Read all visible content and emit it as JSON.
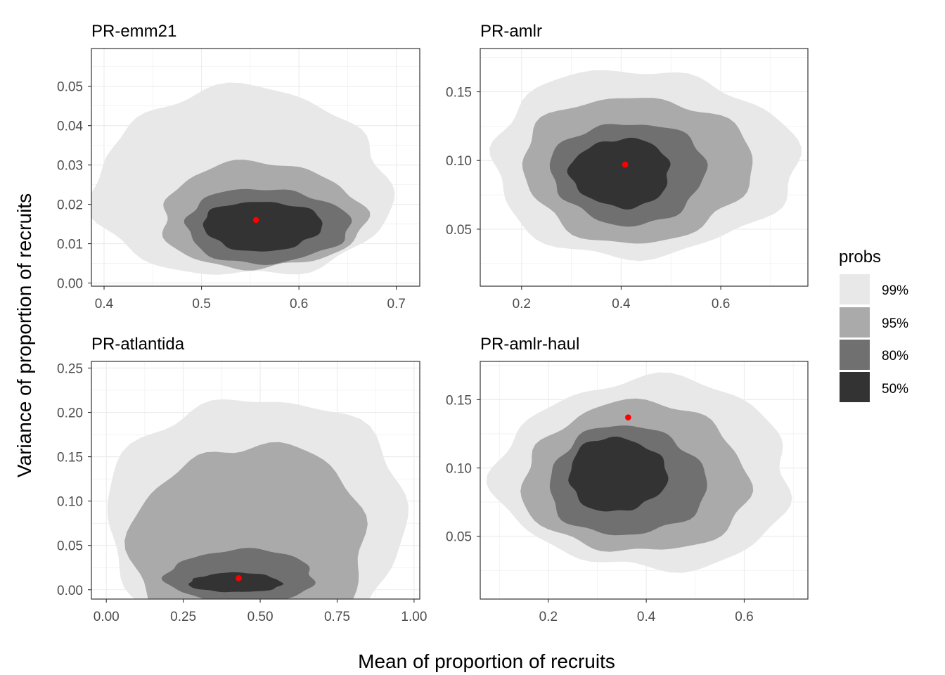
{
  "chart_data": [
    {
      "type": "contour",
      "title": "PR-emm21",
      "xlim": [
        0.387,
        0.724
      ],
      "ylim": [
        -0.0008,
        0.0596
      ],
      "xticks": [
        0.4,
        0.5,
        0.6,
        0.7
      ],
      "xtick_labels": [
        "0.4",
        "0.5",
        "0.6",
        "0.7"
      ],
      "yticks": [
        0.0,
        0.01,
        0.02,
        0.03,
        0.04,
        0.05
      ],
      "ytick_labels": [
        "0.00",
        "0.01",
        "0.02",
        "0.03",
        "0.04",
        "0.05"
      ],
      "center": {
        "x": 0.556,
        "y": 0.016
      },
      "probs_regions": [
        {
          "level": "99%",
          "center_x": 0.541,
          "center_y": 0.025,
          "half_width_x": 0.152,
          "half_height_y": 0.024
        },
        {
          "level": "95%",
          "center_x": 0.561,
          "center_y": 0.017,
          "half_width_x": 0.104,
          "half_height_y": 0.0135
        },
        {
          "level": "80%",
          "center_x": 0.566,
          "center_y": 0.0145,
          "half_width_x": 0.084,
          "half_height_y": 0.0095
        },
        {
          "level": "50%",
          "center_x": 0.562,
          "center_y": 0.0145,
          "half_width_x": 0.061,
          "half_height_y": 0.0063
        }
      ]
    },
    {
      "type": "contour",
      "title": "PR-amlr",
      "xlim": [
        0.117,
        0.775
      ],
      "ylim": [
        0.0085,
        0.1815
      ],
      "xticks": [
        0.2,
        0.4,
        0.6
      ],
      "xtick_labels": [
        "0.2",
        "0.4",
        "0.6"
      ],
      "yticks": [
        0.05,
        0.1,
        0.15
      ],
      "ytick_labels": [
        "0.05",
        "0.10",
        "0.15"
      ],
      "center": {
        "x": 0.408,
        "y": 0.097
      },
      "probs_regions": [
        {
          "level": "99%",
          "center_x": 0.44,
          "center_y": 0.098,
          "half_width_x": 0.305,
          "half_height_y": 0.068
        },
        {
          "level": "95%",
          "center_x": 0.43,
          "center_y": 0.094,
          "half_width_x": 0.23,
          "half_height_y": 0.053
        },
        {
          "level": "80%",
          "center_x": 0.415,
          "center_y": 0.091,
          "half_width_x": 0.155,
          "half_height_y": 0.037
        },
        {
          "level": "50%",
          "center_x": 0.4,
          "center_y": 0.091,
          "half_width_x": 0.1,
          "half_height_y": 0.025
        }
      ]
    },
    {
      "type": "contour",
      "title": "PR-atlantida",
      "xlim": [
        -0.0485,
        1.0185
      ],
      "ylim": [
        -0.0105,
        0.2575
      ],
      "xticks": [
        0.0,
        0.25,
        0.5,
        0.75,
        1.0
      ],
      "xtick_labels": [
        "0.00",
        "0.25",
        "0.50",
        "0.75",
        "1.00"
      ],
      "yticks": [
        0.0,
        0.05,
        0.1,
        0.15,
        0.2,
        0.25
      ],
      "ytick_labels": [
        "0.00",
        "0.05",
        "0.10",
        "0.15",
        "0.20",
        "0.25"
      ],
      "center": {
        "x": 0.43,
        "y": 0.013
      },
      "probs_regions": [
        {
          "level": "99%",
          "center_x": 0.49,
          "center_y": 0.07,
          "half_width_x": 0.48,
          "half_height_y": 0.15
        },
        {
          "level": "95%",
          "center_x": 0.47,
          "center_y": 0.045,
          "half_width_x": 0.38,
          "half_height_y": 0.12
        },
        {
          "level": "80%",
          "center_x": 0.44,
          "center_y": 0.015,
          "half_width_x": 0.24,
          "half_height_y": 0.03
        },
        {
          "level": "50%",
          "center_x": 0.42,
          "center_y": 0.008,
          "half_width_x": 0.15,
          "half_height_y": 0.011
        }
      ]
    },
    {
      "type": "contour",
      "title": "PR-amlr-haul",
      "xlim": [
        0.061,
        0.73
      ],
      "ylim": [
        0.004,
        0.178
      ],
      "xticks": [
        0.2,
        0.4,
        0.6
      ],
      "xtick_labels": [
        "0.2",
        "0.4",
        "0.6"
      ],
      "yticks": [
        0.05,
        0.1,
        0.15
      ],
      "ytick_labels": [
        "0.05",
        "0.10",
        "0.15"
      ],
      "center": {
        "x": 0.363,
        "y": 0.137
      },
      "probs_regions": [
        {
          "level": "99%",
          "center_x": 0.4,
          "center_y": 0.095,
          "half_width_x": 0.3,
          "half_height_y": 0.07
        },
        {
          "level": "95%",
          "center_x": 0.38,
          "center_y": 0.092,
          "half_width_x": 0.23,
          "half_height_y": 0.055
        },
        {
          "level": "80%",
          "center_x": 0.36,
          "center_y": 0.09,
          "half_width_x": 0.16,
          "half_height_y": 0.04
        },
        {
          "level": "50%",
          "center_x": 0.34,
          "center_y": 0.095,
          "half_width_x": 0.1,
          "half_height_y": 0.027
        }
      ]
    }
  ],
  "xlabel": "Mean of proportion of recruits",
  "ylabel": "Variance of proportion of recruits",
  "legend": {
    "title": "probs",
    "position": "right",
    "items": [
      {
        "label": "99%",
        "color": "#e8e8e8"
      },
      {
        "label": "95%",
        "color": "#aaaaaa"
      },
      {
        "label": "80%",
        "color": "#707070"
      },
      {
        "label": "50%",
        "color": "#333333"
      }
    ]
  },
  "colors": {
    "level_99": "#e8e8e8",
    "level_95": "#aaaaaa",
    "level_80": "#707070",
    "level_50": "#333333",
    "center_point": "#ff0000",
    "gridline": "#ebebeb",
    "panel_border": "#333333"
  }
}
